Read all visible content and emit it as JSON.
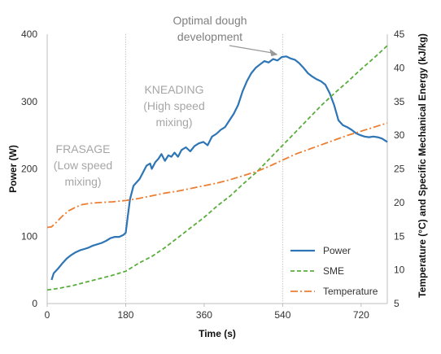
{
  "chart_data": {
    "type": "line",
    "xlabel": "Time (s)",
    "ylabel_left": "Power (W)",
    "ylabel_right": "Temperature (°C) and Specific Mechanical Energy (kJ/kg)",
    "x_ticks": [
      0,
      180,
      360,
      540,
      720
    ],
    "y_left_ticks": [
      0,
      100,
      200,
      300,
      400
    ],
    "y_right_ticks": [
      5,
      10,
      15,
      20,
      25,
      30,
      35,
      40,
      45
    ],
    "xlim": [
      0,
      780
    ],
    "ylim_left": [
      0,
      400
    ],
    "ylim_right": [
      5,
      45
    ],
    "grid": false,
    "legend_position": "bottom-right",
    "phase_lines_x": [
      180,
      540
    ],
    "phase_labels": [
      {
        "lines": [
          "FRASAGE",
          "(Low speed",
          "mixing)"
        ]
      },
      {
        "lines": [
          "KNEADING",
          "(High speed",
          "mixing)"
        ]
      }
    ],
    "annotation": {
      "lines": [
        "Optimal dough",
        "development"
      ],
      "x": 555,
      "y": 366
    },
    "series": [
      {
        "name": "Power",
        "axis": "left",
        "color": "#2e75b6",
        "style": "solid",
        "points": [
          [
            10,
            35
          ],
          [
            15,
            45
          ],
          [
            25,
            52
          ],
          [
            35,
            60
          ],
          [
            45,
            67
          ],
          [
            55,
            72
          ],
          [
            65,
            76
          ],
          [
            75,
            79
          ],
          [
            85,
            81
          ],
          [
            95,
            83
          ],
          [
            105,
            86
          ],
          [
            115,
            88
          ],
          [
            125,
            90
          ],
          [
            135,
            93
          ],
          [
            145,
            97
          ],
          [
            155,
            99
          ],
          [
            165,
            99
          ],
          [
            175,
            102
          ],
          [
            180,
            105
          ],
          [
            185,
            130
          ],
          [
            190,
            155
          ],
          [
            198,
            175
          ],
          [
            205,
            180
          ],
          [
            212,
            185
          ],
          [
            220,
            195
          ],
          [
            228,
            205
          ],
          [
            236,
            208
          ],
          [
            240,
            200
          ],
          [
            248,
            210
          ],
          [
            255,
            215
          ],
          [
            262,
            222
          ],
          [
            270,
            212
          ],
          [
            278,
            220
          ],
          [
            285,
            218
          ],
          [
            292,
            224
          ],
          [
            300,
            218
          ],
          [
            308,
            228
          ],
          [
            318,
            232
          ],
          [
            328,
            226
          ],
          [
            338,
            234
          ],
          [
            348,
            238
          ],
          [
            358,
            240
          ],
          [
            368,
            235
          ],
          [
            378,
            248
          ],
          [
            388,
            252
          ],
          [
            398,
            258
          ],
          [
            408,
            262
          ],
          [
            418,
            272
          ],
          [
            428,
            282
          ],
          [
            438,
            295
          ],
          [
            448,
            315
          ],
          [
            458,
            330
          ],
          [
            468,
            342
          ],
          [
            478,
            350
          ],
          [
            488,
            355
          ],
          [
            498,
            360
          ],
          [
            508,
            358
          ],
          [
            518,
            363
          ],
          [
            528,
            361
          ],
          [
            538,
            366
          ],
          [
            548,
            367
          ],
          [
            558,
            364
          ],
          [
            568,
            362
          ],
          [
            578,
            357
          ],
          [
            588,
            350
          ],
          [
            598,
            342
          ],
          [
            608,
            337
          ],
          [
            618,
            333
          ],
          [
            628,
            330
          ],
          [
            638,
            325
          ],
          [
            648,
            312
          ],
          [
            658,
            295
          ],
          [
            668,
            272
          ],
          [
            678,
            265
          ],
          [
            688,
            262
          ],
          [
            698,
            258
          ],
          [
            708,
            253
          ],
          [
            718,
            250
          ],
          [
            728,
            248
          ],
          [
            738,
            247
          ],
          [
            748,
            248
          ],
          [
            758,
            247
          ],
          [
            768,
            245
          ],
          [
            780,
            240
          ]
        ]
      },
      {
        "name": "SME",
        "axis": "right",
        "color": "#5aad3c",
        "style": "dashed",
        "points": [
          [
            0,
            7.0
          ],
          [
            30,
            7.3
          ],
          [
            60,
            7.7
          ],
          [
            90,
            8.2
          ],
          [
            120,
            8.7
          ],
          [
            150,
            9.2
          ],
          [
            180,
            9.8
          ],
          [
            210,
            11.0
          ],
          [
            240,
            12.0
          ],
          [
            270,
            13.3
          ],
          [
            300,
            14.8
          ],
          [
            330,
            16.3
          ],
          [
            360,
            17.8
          ],
          [
            390,
            19.5
          ],
          [
            420,
            21.0
          ],
          [
            450,
            22.8
          ],
          [
            480,
            24.5
          ],
          [
            510,
            26.5
          ],
          [
            540,
            28.5
          ],
          [
            570,
            30.5
          ],
          [
            600,
            32.5
          ],
          [
            630,
            34.5
          ],
          [
            660,
            36.3
          ],
          [
            690,
            38.0
          ],
          [
            720,
            39.8
          ],
          [
            750,
            41.5
          ],
          [
            780,
            43.3
          ]
        ]
      },
      {
        "name": "Temperature",
        "axis": "right",
        "color": "#ed7d31",
        "style": "dashdot",
        "points": [
          [
            0,
            16.3
          ],
          [
            10,
            16.4
          ],
          [
            20,
            17.0
          ],
          [
            35,
            18.0
          ],
          [
            50,
            18.8
          ],
          [
            65,
            19.3
          ],
          [
            80,
            19.7
          ],
          [
            100,
            19.9
          ],
          [
            120,
            20.0
          ],
          [
            150,
            20.1
          ],
          [
            180,
            20.3
          ],
          [
            210,
            20.6
          ],
          [
            240,
            21.0
          ],
          [
            270,
            21.4
          ],
          [
            300,
            21.7
          ],
          [
            330,
            22.1
          ],
          [
            360,
            22.5
          ],
          [
            390,
            22.9
          ],
          [
            420,
            23.4
          ],
          [
            450,
            24.0
          ],
          [
            480,
            24.6
          ],
          [
            510,
            25.4
          ],
          [
            540,
            26.3
          ],
          [
            570,
            27.2
          ],
          [
            600,
            27.9
          ],
          [
            630,
            28.6
          ],
          [
            660,
            29.3
          ],
          [
            690,
            30.0
          ],
          [
            720,
            30.6
          ],
          [
            750,
            31.2
          ],
          [
            780,
            31.8
          ]
        ]
      }
    ]
  }
}
